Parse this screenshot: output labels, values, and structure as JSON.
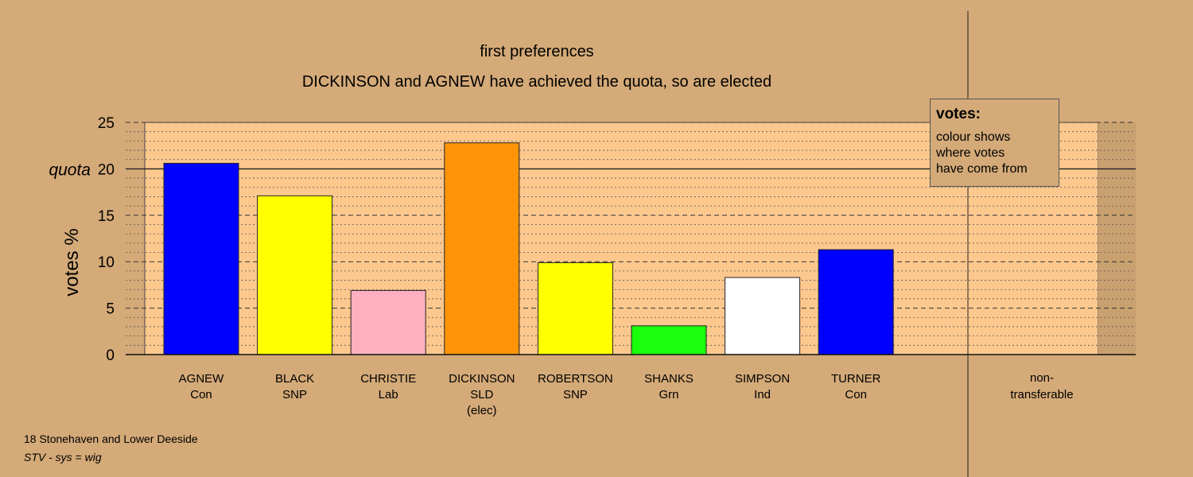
{
  "chart_data": {
    "type": "bar",
    "title": "first preferences",
    "subtitle": "DICKINSON and AGNEW have achieved the quota, so are elected",
    "ylabel": "votes %",
    "ylim": [
      0,
      25
    ],
    "yticks": [
      0,
      5,
      10,
      15,
      20,
      25
    ],
    "quota": 20,
    "quota_label": "quota",
    "grid": true,
    "categories": [
      {
        "name": "AGNEW",
        "party": "Con",
        "note": "",
        "value": 20.6,
        "color": "#0000ff"
      },
      {
        "name": "BLACK",
        "party": "SNP",
        "note": "",
        "value": 17.1,
        "color": "#ffff00"
      },
      {
        "name": "CHRISTIE",
        "party": "Lab",
        "note": "",
        "value": 6.9,
        "color": "#ffb0c0"
      },
      {
        "name": "DICKINSON",
        "party": "SLD",
        "note": "(elec)",
        "value": 22.8,
        "color": "#ff9408"
      },
      {
        "name": "ROBERTSON",
        "party": "SNP",
        "note": "",
        "value": 9.9,
        "color": "#ffff00"
      },
      {
        "name": "SHANKS",
        "party": "Grn",
        "note": "",
        "value": 3.1,
        "color": "#1cff0c"
      },
      {
        "name": "SIMPSON",
        "party": "Ind",
        "note": "",
        "value": 8.3,
        "color": "#ffffff"
      },
      {
        "name": "TURNER",
        "party": "Con",
        "note": "",
        "value": 11.3,
        "color": "#0000ff"
      }
    ],
    "nontransferable": {
      "line1": "non-",
      "line2": "transferable",
      "value": 0
    }
  },
  "legend": {
    "title": "votes:",
    "lines": [
      "colour shows",
      "where votes",
      "have come from"
    ]
  },
  "footer": {
    "line1": "18 Stonehaven and Lower Deeside",
    "line2": "STV - sys = wig"
  },
  "colors": {
    "background": "#d4aa78",
    "plot_background": "#fdc88e"
  }
}
